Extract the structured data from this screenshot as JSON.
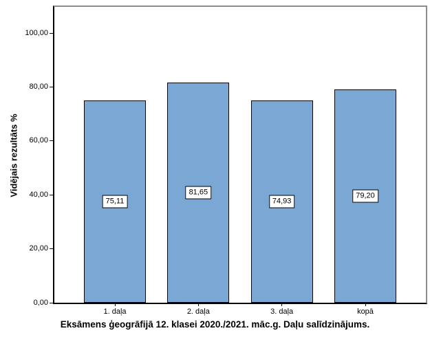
{
  "chart_data": {
    "type": "bar",
    "title": "Eksāmens ģeogrāfijā 12. klasei 2020./2021. māc.g. Daļu salīdzinājums.",
    "ylabel": "Vidējais rezultāts %",
    "xlabel": "",
    "categories": [
      "1. daļa",
      "2. daļa",
      "3. daļa",
      "kopā"
    ],
    "values": [
      75.11,
      81.65,
      74.93,
      79.2
    ],
    "value_labels": [
      "75,11",
      "81,65",
      "74,93",
      "79,20"
    ],
    "ylim": [
      0,
      110
    ],
    "yticks": [
      0,
      20,
      40,
      60,
      80,
      100
    ],
    "ytick_labels": [
      "0,00",
      "20,00",
      "40,00",
      "60,00",
      "80,00",
      "100,00"
    ],
    "grid": false,
    "legend_position": "none",
    "colors": {
      "bar_fill": "#7BA7D5",
      "bar_border": "#000000",
      "frame": "#8C8C8C",
      "axis": "#000000",
      "background": "#FFFFFF",
      "label_box_bg": "#FFFFFF",
      "label_box_border": "#000000"
    }
  }
}
